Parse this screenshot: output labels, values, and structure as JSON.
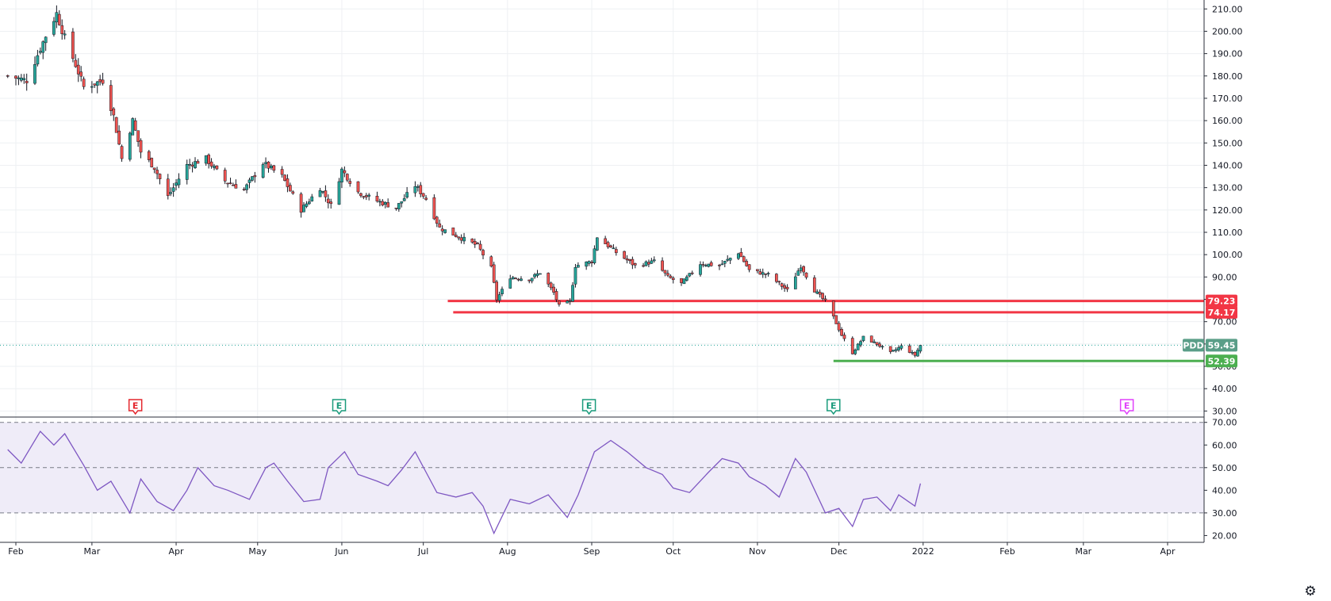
{
  "chart_data": [
    {
      "type": "candlestick",
      "panel": "price",
      "symbol": "PDD",
      "last_price": 59.45,
      "ylim": [
        28,
        214
      ],
      "y_ticks": [
        "210.00",
        "200.00",
        "190.00",
        "180.00",
        "170.00",
        "160.00",
        "150.00",
        "140.00",
        "130.00",
        "120.00",
        "110.00",
        "100.00",
        "90.00",
        "80.00",
        "70.00",
        "60.00",
        "50.00",
        "40.00",
        "30.00"
      ],
      "horizontal_lines": [
        {
          "value": 79.23,
          "label": "79.23",
          "color": "#f23645",
          "start_date": "2021-07-10"
        },
        {
          "value": 74.17,
          "label": "74.17",
          "color": "#f23645",
          "start_date": "2021-07-12"
        },
        {
          "value": 52.39,
          "label": "52.39",
          "color": "#4caf50",
          "start_date": "2021-11-29"
        }
      ],
      "earnings_markers": [
        {
          "date": "2021-03-17",
          "label": "E",
          "color": "#e4262d"
        },
        {
          "date": "2021-05-31",
          "label": "E",
          "color": "#1a9b7c"
        },
        {
          "date": "2021-08-31",
          "label": "E",
          "color": "#1a9b7c"
        },
        {
          "date": "2021-11-29",
          "label": "E",
          "color": "#1a9b7c"
        },
        {
          "date": "2022-03-17",
          "label": "E",
          "color": "#e040fb"
        }
      ],
      "close_points": [
        [
          "2021-01-29",
          180
        ],
        [
          "2021-02-05",
          178
        ],
        [
          "2021-02-12",
          198
        ],
        [
          "2021-02-16",
          208
        ],
        [
          "2021-02-19",
          197
        ],
        [
          "2021-02-23",
          185
        ],
        [
          "2021-02-26",
          175
        ],
        [
          "2021-03-05",
          178
        ],
        [
          "2021-03-09",
          162
        ],
        [
          "2021-03-12",
          143
        ],
        [
          "2021-03-16",
          160
        ],
        [
          "2021-03-19",
          146
        ],
        [
          "2021-03-24",
          139
        ],
        [
          "2021-03-29",
          126
        ],
        [
          "2021-04-05",
          140
        ],
        [
          "2021-04-12",
          143
        ],
        [
          "2021-04-19",
          133
        ],
        [
          "2021-04-26",
          129
        ],
        [
          "2021-05-03",
          141
        ],
        [
          "2021-05-10",
          135
        ],
        [
          "2021-05-17",
          120
        ],
        [
          "2021-05-24",
          130
        ],
        [
          "2021-05-28",
          122
        ],
        [
          "2021-06-01",
          138
        ],
        [
          "2021-06-07",
          128
        ],
        [
          "2021-06-14",
          124
        ],
        [
          "2021-06-21",
          121
        ],
        [
          "2021-06-28",
          131
        ],
        [
          "2021-07-02",
          125
        ],
        [
          "2021-07-07",
          112
        ],
        [
          "2021-07-14",
          108
        ],
        [
          "2021-07-21",
          104
        ],
        [
          "2021-07-26",
          94
        ],
        [
          "2021-07-28",
          80
        ],
        [
          "2021-08-02",
          90
        ],
        [
          "2021-08-09",
          89
        ],
        [
          "2021-08-13",
          92
        ],
        [
          "2021-08-18",
          83
        ],
        [
          "2021-08-20",
          77
        ],
        [
          "2021-08-24",
          79
        ],
        [
          "2021-08-26",
          95
        ],
        [
          "2021-09-01",
          97
        ],
        [
          "2021-09-03",
          108
        ],
        [
          "2021-09-10",
          101
        ],
        [
          "2021-09-17",
          95
        ],
        [
          "2021-09-24",
          97
        ],
        [
          "2021-09-29",
          90
        ],
        [
          "2021-10-04",
          87
        ],
        [
          "2021-10-11",
          96
        ],
        [
          "2021-10-18",
          95
        ],
        [
          "2021-10-25",
          101
        ],
        [
          "2021-10-29",
          93
        ],
        [
          "2021-11-05",
          91
        ],
        [
          "2021-11-12",
          84
        ],
        [
          "2021-11-17",
          95
        ],
        [
          "2021-11-22",
          84
        ],
        [
          "2021-11-26",
          79
        ],
        [
          "2021-11-29",
          72
        ],
        [
          "2021-12-02",
          64
        ],
        [
          "2021-12-06",
          56
        ],
        [
          "2021-12-10",
          63
        ],
        [
          "2021-12-15",
          60
        ],
        [
          "2021-12-20",
          56
        ],
        [
          "2021-12-24",
          59
        ],
        [
          "2021-12-29",
          55
        ],
        [
          "2021-12-31",
          59.45
        ]
      ]
    },
    {
      "type": "line",
      "panel": "rsi",
      "ylim": [
        17,
        72
      ],
      "y_ticks": [
        "70.00",
        "60.00",
        "50.00",
        "40.00",
        "30.00",
        "20.00"
      ],
      "levels": [
        70,
        50,
        30
      ],
      "band": [
        30,
        70
      ],
      "points": [
        [
          "2021-01-29",
          58
        ],
        [
          "2021-02-03",
          52
        ],
        [
          "2021-02-10",
          66
        ],
        [
          "2021-02-15",
          60
        ],
        [
          "2021-02-19",
          65
        ],
        [
          "2021-02-26",
          51
        ],
        [
          "2021-03-03",
          40
        ],
        [
          "2021-03-08",
          44
        ],
        [
          "2021-03-15",
          30
        ],
        [
          "2021-03-19",
          45
        ],
        [
          "2021-03-25",
          35
        ],
        [
          "2021-03-31",
          31
        ],
        [
          "2021-04-05",
          40
        ],
        [
          "2021-04-09",
          50
        ],
        [
          "2021-04-15",
          42
        ],
        [
          "2021-04-20",
          40
        ],
        [
          "2021-04-28",
          36
        ],
        [
          "2021-05-04",
          50
        ],
        [
          "2021-05-07",
          52
        ],
        [
          "2021-05-12",
          44
        ],
        [
          "2021-05-18",
          35
        ],
        [
          "2021-05-24",
          36
        ],
        [
          "2021-05-27",
          50
        ],
        [
          "2021-06-02",
          57
        ],
        [
          "2021-06-07",
          47
        ],
        [
          "2021-06-14",
          44
        ],
        [
          "2021-06-18",
          42
        ],
        [
          "2021-06-23",
          49
        ],
        [
          "2021-06-28",
          57
        ],
        [
          "2021-07-02",
          48
        ],
        [
          "2021-07-06",
          39
        ],
        [
          "2021-07-13",
          37
        ],
        [
          "2021-07-19",
          39
        ],
        [
          "2021-07-23",
          33
        ],
        [
          "2021-07-27",
          21
        ],
        [
          "2021-08-02",
          36
        ],
        [
          "2021-08-09",
          34
        ],
        [
          "2021-08-16",
          38
        ],
        [
          "2021-08-23",
          28
        ],
        [
          "2021-08-27",
          38
        ],
        [
          "2021-09-02",
          57
        ],
        [
          "2021-09-08",
          62
        ],
        [
          "2021-09-14",
          57
        ],
        [
          "2021-09-21",
          50
        ],
        [
          "2021-09-27",
          47
        ],
        [
          "2021-10-01",
          41
        ],
        [
          "2021-10-07",
          39
        ],
        [
          "2021-10-14",
          48
        ],
        [
          "2021-10-19",
          54
        ],
        [
          "2021-10-25",
          52
        ],
        [
          "2021-10-29",
          46
        ],
        [
          "2021-11-04",
          42
        ],
        [
          "2021-11-09",
          37
        ],
        [
          "2021-11-15",
          54
        ],
        [
          "2021-11-19",
          48
        ],
        [
          "2021-11-26",
          30
        ],
        [
          "2021-12-01",
          32
        ],
        [
          "2021-12-06",
          24
        ],
        [
          "2021-12-10",
          36
        ],
        [
          "2021-12-15",
          37
        ],
        [
          "2021-12-20",
          31
        ],
        [
          "2021-12-23",
          38
        ],
        [
          "2021-12-29",
          33
        ],
        [
          "2021-12-31",
          43
        ]
      ]
    }
  ],
  "x_axis": {
    "ticks": [
      {
        "date": "2021-02-01",
        "label": "Feb"
      },
      {
        "date": "2021-03-01",
        "label": "Mar"
      },
      {
        "date": "2021-04-01",
        "label": "Apr"
      },
      {
        "date": "2021-05-01",
        "label": "May"
      },
      {
        "date": "2021-06-01",
        "label": "Jun"
      },
      {
        "date": "2021-07-01",
        "label": "Jul"
      },
      {
        "date": "2021-08-01",
        "label": "Aug"
      },
      {
        "date": "2021-09-01",
        "label": "Sep"
      },
      {
        "date": "2021-10-01",
        "label": "Oct"
      },
      {
        "date": "2021-11-01",
        "label": "Nov"
      },
      {
        "date": "2021-12-01",
        "label": "Dec"
      },
      {
        "date": "2022-01-01",
        "label": "2022"
      },
      {
        "date": "2022-02-01",
        "label": "Feb"
      },
      {
        "date": "2022-03-01",
        "label": "Mar"
      },
      {
        "date": "2022-04-01",
        "label": "Apr"
      }
    ]
  },
  "colors": {
    "up": "#26a69a",
    "down": "#ef5350",
    "rsi_line": "#7e57c2",
    "rsi_band": "#efecf8",
    "grid": "#eef0f3",
    "axis_text": "#131722"
  },
  "symbol_badge": {
    "label": "PDD",
    "value": "59.45"
  },
  "settings_icon": "gear-icon"
}
